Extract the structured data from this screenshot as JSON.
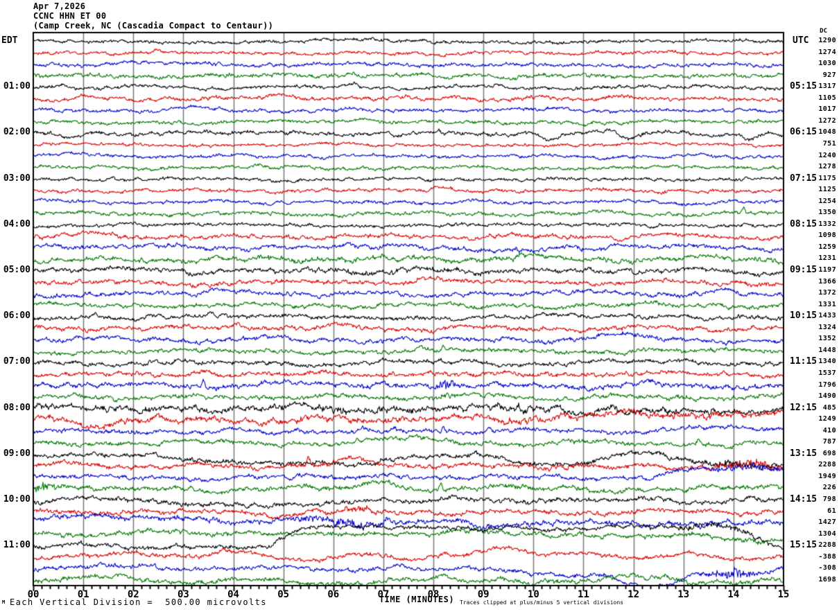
{
  "header": {
    "date": "Apr 7,2026",
    "station_line": "CCNC HHN ET 00",
    "location_line": "(Camp Creek, NC (Cascadia Compact to Centaur))",
    "left_tz": "EDT",
    "right_tz": "UTC",
    "dc_label": "DC"
  },
  "footer": {
    "mark": "M",
    "scale_note": "Each Vertical Division =  500.00 microvolts",
    "x_axis_title": "TIME (MINUTES)",
    "clip_note": "Traces clipped at plus/minus 5 vertical divisions"
  },
  "colors": {
    "background": "#ffffff",
    "border": "#000000",
    "grid": "#777777",
    "text": "#000000",
    "trace_cycle": [
      "#000000",
      "#dd0000",
      "#0000cc",
      "#007700"
    ]
  },
  "chart_data": {
    "type": "line",
    "title": "CCNC HHN ET 00 webicorder (Camp Creek, NC)",
    "x_axis": {
      "title": "TIME (MINUTES)",
      "tick_labels": [
        "00",
        "01",
        "02",
        "03",
        "04",
        "05",
        "06",
        "07",
        "08",
        "09",
        "10",
        "11",
        "12",
        "13",
        "14",
        "15"
      ],
      "range_minutes": [
        0,
        15
      ],
      "minor_ticks_per_minute": 6
    },
    "grid": "vertical-only",
    "line_duration_minutes": 15,
    "lines_per_hour": 4,
    "hours_shown": 12,
    "first_line_start_edt": "00:00",
    "trace_color_cycle": [
      "#000000",
      "#dd0000",
      "#0000cc",
      "#007700"
    ],
    "time_rows": [
      {
        "row": 4,
        "edt": "01:00",
        "utc": "05:15"
      },
      {
        "row": 8,
        "edt": "02:00",
        "utc": "06:15"
      },
      {
        "row": 12,
        "edt": "03:00",
        "utc": "07:15"
      },
      {
        "row": 16,
        "edt": "04:00",
        "utc": "08:15"
      },
      {
        "row": 20,
        "edt": "05:00",
        "utc": "09:15"
      },
      {
        "row": 24,
        "edt": "06:00",
        "utc": "10:15"
      },
      {
        "row": 28,
        "edt": "07:00",
        "utc": "11:15"
      },
      {
        "row": 32,
        "edt": "08:00",
        "utc": "12:15"
      },
      {
        "row": 36,
        "edt": "09:00",
        "utc": "13:15"
      },
      {
        "row": 40,
        "edt": "10:00",
        "utc": "14:15"
      },
      {
        "row": 44,
        "edt": "11:00",
        "utc": "15:15"
      }
    ],
    "rows": [
      {
        "start_edt": "00:00",
        "dc": 1290,
        "amp": 2.2,
        "sw": 1.6,
        "ev": [
          [
            "h",
            6.5,
            0.8,
            3
          ]
        ]
      },
      {
        "start_edt": "00:15",
        "dc": 1274,
        "amp": 2.2,
        "sw": 1.8,
        "ev": [
          [
            "h",
            2.5,
            0.8,
            3
          ]
        ]
      },
      {
        "start_edt": "00:30",
        "dc": 1030,
        "amp": 2.5,
        "sw": 2.2,
        "ev": [
          [
            "h",
            2,
            0.8,
            4
          ],
          [
            "h",
            12.6,
            1,
            -3
          ]
        ]
      },
      {
        "start_edt": "00:45",
        "dc": 927,
        "amp": 2.8,
        "sw": 2.2,
        "ev": [
          [
            "h",
            5,
            0.8,
            3
          ]
        ]
      },
      {
        "start_edt": "01:00",
        "dc": 1317,
        "amp": 2.4,
        "sw": 1.7,
        "ev": [
          [
            "h",
            6.3,
            0.3,
            4
          ],
          [
            "h",
            8.6,
            0.4,
            4
          ],
          [
            "h",
            0.4,
            0.3,
            3
          ]
        ]
      },
      {
        "start_edt": "01:15",
        "dc": 1105,
        "amp": 2.6,
        "sw": 2.4,
        "ev": [
          [
            "h",
            7.4,
            0.4,
            5
          ],
          [
            "h",
            8.4,
            0.3,
            4
          ],
          [
            "h",
            1.1,
            0.4,
            4
          ]
        ]
      },
      {
        "start_edt": "01:30",
        "dc": 1017,
        "amp": 2.3,
        "sw": 2.0,
        "ev": [
          [
            "h",
            3.2,
            0.6,
            3
          ]
        ]
      },
      {
        "start_edt": "01:45",
        "dc": 1272,
        "amp": 2.4,
        "sw": 2.0,
        "ev": [
          [
            "h",
            11,
            0.15,
            -4
          ]
        ]
      },
      {
        "start_edt": "02:00",
        "dc": 1048,
        "amp": 2.6,
        "sw": 2.6,
        "ev": [
          [
            "h",
            7.3,
            0.2,
            -7
          ],
          [
            "s",
            8.1,
            0,
            6
          ],
          [
            "h",
            10.3,
            0.22,
            -9
          ],
          [
            "h",
            11.9,
            0.22,
            -9
          ],
          [
            "h",
            14.3,
            0.2,
            -8
          ],
          [
            "h",
            5.2,
            0.6,
            4
          ],
          [
            "h",
            0.8,
            0.3,
            -5
          ]
        ]
      },
      {
        "start_edt": "02:15",
        "dc": 751,
        "amp": 2.0,
        "sw": 1.7,
        "ev": []
      },
      {
        "start_edt": "02:30",
        "dc": 1240,
        "amp": 2.2,
        "sw": 2.0,
        "ev": [
          [
            "h",
            0.7,
            0.4,
            4
          ],
          [
            "h",
            11.5,
            0.2,
            -4
          ]
        ]
      },
      {
        "start_edt": "02:45",
        "dc": 1278,
        "amp": 2.2,
        "sw": 2.0,
        "ev": [
          [
            "h",
            4.6,
            0.2,
            5
          ],
          [
            "h",
            9.6,
            0.3,
            -3
          ]
        ]
      },
      {
        "start_edt": "03:00",
        "dc": 1175,
        "amp": 2.2,
        "sw": 1.8,
        "ev": [
          [
            "s",
            1.6,
            0,
            7
          ]
        ]
      },
      {
        "start_edt": "03:15",
        "dc": 1125,
        "amp": 2.3,
        "sw": 2.0,
        "ev": [
          [
            "h",
            8.2,
            0.3,
            6
          ]
        ]
      },
      {
        "start_edt": "03:30",
        "dc": 1254,
        "amp": 2.3,
        "sw": 2.0,
        "ev": []
      },
      {
        "start_edt": "03:45",
        "dc": 1350,
        "amp": 2.5,
        "sw": 2.0,
        "ev": [
          [
            "s",
            14.2,
            0,
            8
          ],
          [
            "h",
            13.9,
            0.3,
            3
          ]
        ]
      },
      {
        "start_edt": "04:00",
        "dc": 1332,
        "amp": 2.3,
        "sw": 2.0,
        "ev": []
      },
      {
        "start_edt": "04:15",
        "dc": 1098,
        "amp": 2.8,
        "sw": 3.0,
        "ev": [
          [
            "h",
            1,
            0.6,
            4
          ]
        ]
      },
      {
        "start_edt": "04:30",
        "dc": 1259,
        "amp": 3.0,
        "sw": 3.4,
        "ev": [
          [
            "h",
            3,
            0.8,
            5
          ],
          [
            "h",
            2.2,
            0.4,
            4
          ]
        ]
      },
      {
        "start_edt": "04:45",
        "dc": 1231,
        "amp": 3.3,
        "sw": 3.4,
        "ev": [
          [
            "h",
            9.8,
            0.6,
            6
          ],
          [
            "b",
            5,
            2,
            1.5
          ]
        ]
      },
      {
        "start_edt": "05:00",
        "dc": 1197,
        "amp": 3.4,
        "sw": 3.4,
        "ev": [
          [
            "b",
            7,
            3,
            1.5
          ],
          [
            "h",
            1.5,
            0.6,
            5
          ]
        ]
      },
      {
        "start_edt": "05:15",
        "dc": 1366,
        "amp": 3.0,
        "sw": 3.2,
        "ev": [
          [
            "h",
            7.8,
            0.6,
            6
          ]
        ]
      },
      {
        "start_edt": "05:30",
        "dc": 1372,
        "amp": 3.0,
        "sw": 3.2,
        "ev": [
          [
            "h",
            13.8,
            0.4,
            6
          ],
          [
            "h",
            7,
            0.8,
            4
          ]
        ]
      },
      {
        "start_edt": "05:45",
        "dc": 1331,
        "amp": 2.8,
        "sw": 3.0,
        "ev": []
      },
      {
        "start_edt": "06:00",
        "dc": 1433,
        "amp": 2.8,
        "sw": 3.0,
        "ev": []
      },
      {
        "start_edt": "06:15",
        "dc": 1324,
        "amp": 3.0,
        "sw": 3.2,
        "ev": [
          [
            "h",
            4.1,
            0.3,
            6
          ],
          [
            "h",
            6.1,
            0.3,
            5
          ]
        ]
      },
      {
        "start_edt": "06:30",
        "dc": 1352,
        "amp": 3.0,
        "sw": 3.4,
        "ev": [
          [
            "h",
            11.7,
            0.6,
            8
          ]
        ]
      },
      {
        "start_edt": "06:45",
        "dc": 1448,
        "amp": 2.8,
        "sw": 3.0,
        "ev": [
          [
            "s",
            8.2,
            0,
            9
          ]
        ]
      },
      {
        "start_edt": "07:00",
        "dc": 1340,
        "amp": 3.0,
        "sw": 3.2,
        "ev": []
      },
      {
        "start_edt": "07:15",
        "dc": 1537,
        "amp": 3.0,
        "sw": 3.2,
        "ev": [
          [
            "h",
            3.4,
            0.3,
            7
          ]
        ]
      },
      {
        "start_edt": "07:30",
        "dc": 1796,
        "amp": 3.4,
        "sw": 3.6,
        "ev": [
          [
            "s",
            3.4,
            0,
            13
          ],
          [
            "b",
            8.25,
            0.4,
            5
          ],
          [
            "h",
            6,
            1.2,
            4
          ]
        ]
      },
      {
        "start_edt": "07:45",
        "dc": 1490,
        "amp": 3.0,
        "sw": 3.0,
        "ev": [
          [
            "b",
            8.2,
            0.3,
            5
          ]
        ]
      },
      {
        "start_edt": "08:00",
        "dc": 485,
        "amp": 4.6,
        "sw": 3.0,
        "ev": [
          [
            "s",
            9.7,
            0,
            8
          ],
          [
            "b",
            8,
            6,
            1.2
          ],
          [
            "h",
            13,
            2,
            -5
          ]
        ]
      },
      {
        "start_edt": "08:15",
        "dc": 1249,
        "amp": 4.4,
        "sw": 3.0,
        "ev": [
          [
            "h",
            1,
            0.5,
            -7
          ],
          [
            "p",
            10,
            5,
            8
          ]
        ]
      },
      {
        "start_edt": "08:30",
        "dc": 410,
        "amp": 3.0,
        "sw": 3.0,
        "ev": [
          [
            "s",
            8.2,
            0,
            7
          ],
          [
            "s",
            9.1,
            0,
            7
          ],
          [
            "p",
            12,
            3,
            5
          ]
        ]
      },
      {
        "start_edt": "08:45",
        "dc": 787,
        "amp": 3.0,
        "sw": 3.0,
        "ev": [
          [
            "s",
            13.3,
            0,
            9
          ],
          [
            "h",
            7.6,
            1,
            6
          ],
          [
            "h",
            14,
            0.3,
            -5
          ]
        ]
      },
      {
        "start_edt": "09:00",
        "dc": 698,
        "amp": 3.4,
        "sw": 2.8,
        "ev": [
          [
            "p",
            2.2,
            4.5,
            -12
          ],
          [
            "h",
            7.8,
            0.6,
            -6
          ],
          [
            "p",
            8.8,
            2.2,
            -11
          ],
          [
            "p",
            12.2,
            3.5,
            -14
          ],
          [
            "b",
            14.2,
            1,
            5
          ]
        ]
      },
      {
        "start_edt": "09:15",
        "dc": 2288,
        "amp": 3.2,
        "sw": 2.8,
        "ev": [
          [
            "h",
            6.5,
            0.7,
            10
          ],
          [
            "s",
            5.5,
            0,
            14
          ],
          [
            "h",
            1,
            0.6,
            3
          ],
          [
            "b",
            14.3,
            1,
            4
          ]
        ]
      },
      {
        "start_edt": "09:30",
        "dc": 1949,
        "amp": 3.0,
        "sw": 3.0,
        "ev": [
          [
            "h",
            7,
            0.5,
            5
          ],
          [
            "p",
            12,
            3.5,
            12
          ],
          [
            "b",
            14.3,
            0.8,
            4
          ]
        ]
      },
      {
        "start_edt": "09:45",
        "dc": 226,
        "amp": 3.3,
        "sw": 3.6,
        "ev": [
          [
            "h",
            6.8,
            0.7,
            12
          ],
          [
            "s",
            8.15,
            0,
            10
          ],
          [
            "h",
            2.5,
            0.8,
            4
          ],
          [
            "h",
            3.9,
            0.6,
            -4
          ],
          [
            "b",
            0.3,
            0.4,
            5
          ]
        ]
      },
      {
        "start_edt": "10:00",
        "dc": 798,
        "amp": 3.3,
        "sw": 3.2,
        "ev": [
          [
            "p",
            2,
            3.5,
            -7
          ],
          [
            "h",
            3.7,
            0.3,
            5
          ],
          [
            "h",
            0.8,
            0.5,
            4
          ]
        ]
      },
      {
        "start_edt": "10:15",
        "dc": 61,
        "amp": 3.2,
        "sw": 3.2,
        "ev": [
          [
            "b",
            6.3,
            1.2,
            2.5
          ],
          [
            "h",
            5,
            0.6,
            -5
          ]
        ]
      },
      {
        "start_edt": "10:30",
        "dc": 1427,
        "amp": 3.6,
        "sw": 3.4,
        "ev": [
          [
            "b",
            6.3,
            1.5,
            5
          ],
          [
            "s",
            7.1,
            0,
            10
          ],
          [
            "h",
            5.3,
            1.5,
            4
          ],
          [
            "p",
            -1,
            4,
            8
          ]
        ]
      },
      {
        "start_edt": "10:45",
        "dc": 1304,
        "amp": 3.3,
        "sw": 3.6,
        "ev": [
          [
            "h",
            2.5,
            1,
            8
          ],
          [
            "p",
            12.8,
            3,
            -9
          ],
          [
            "h",
            8,
            1.2,
            4
          ]
        ]
      },
      {
        "start_edt": "11:00",
        "dc": 2288,
        "amp": 3.0,
        "sw": 2.8,
        "ev": [
          [
            "p",
            4.5,
            9.3,
            27
          ],
          [
            "h",
            1.5,
            0.6,
            3
          ],
          [
            "b",
            13.5,
            1.5,
            3
          ]
        ]
      },
      {
        "start_edt": "11:15",
        "dc": -388,
        "amp": 3.0,
        "sw": 3.8,
        "ev": [
          [
            "h",
            4,
            0.7,
            11
          ],
          [
            "h",
            9.3,
            0.7,
            13
          ],
          [
            "h",
            11,
            0.6,
            8
          ],
          [
            "h",
            13,
            0.6,
            10
          ],
          [
            "h",
            1.8,
            0.5,
            7
          ],
          [
            "h",
            6.7,
            0.6,
            6
          ]
        ]
      },
      {
        "start_edt": "11:30",
        "dc": -308,
        "amp": 3.0,
        "sw": 3.8,
        "ev": [
          [
            "h",
            2,
            0.8,
            6
          ],
          [
            "h",
            12.3,
            1,
            -26
          ],
          [
            "h",
            10.8,
            0.6,
            -10
          ],
          [
            "b",
            14,
            0.7,
            6
          ],
          [
            "h",
            14.5,
            0.5,
            -8
          ],
          [
            "h",
            7.3,
            0.2,
            5
          ]
        ]
      },
      {
        "start_edt": "11:45",
        "dc": 1698,
        "amp": 3.3,
        "sw": 3.4,
        "ev": [
          [
            "h",
            1.5,
            1,
            5
          ],
          [
            "h",
            6,
            1.2,
            -4
          ],
          [
            "h",
            12,
            0.8,
            4
          ]
        ]
      }
    ]
  }
}
